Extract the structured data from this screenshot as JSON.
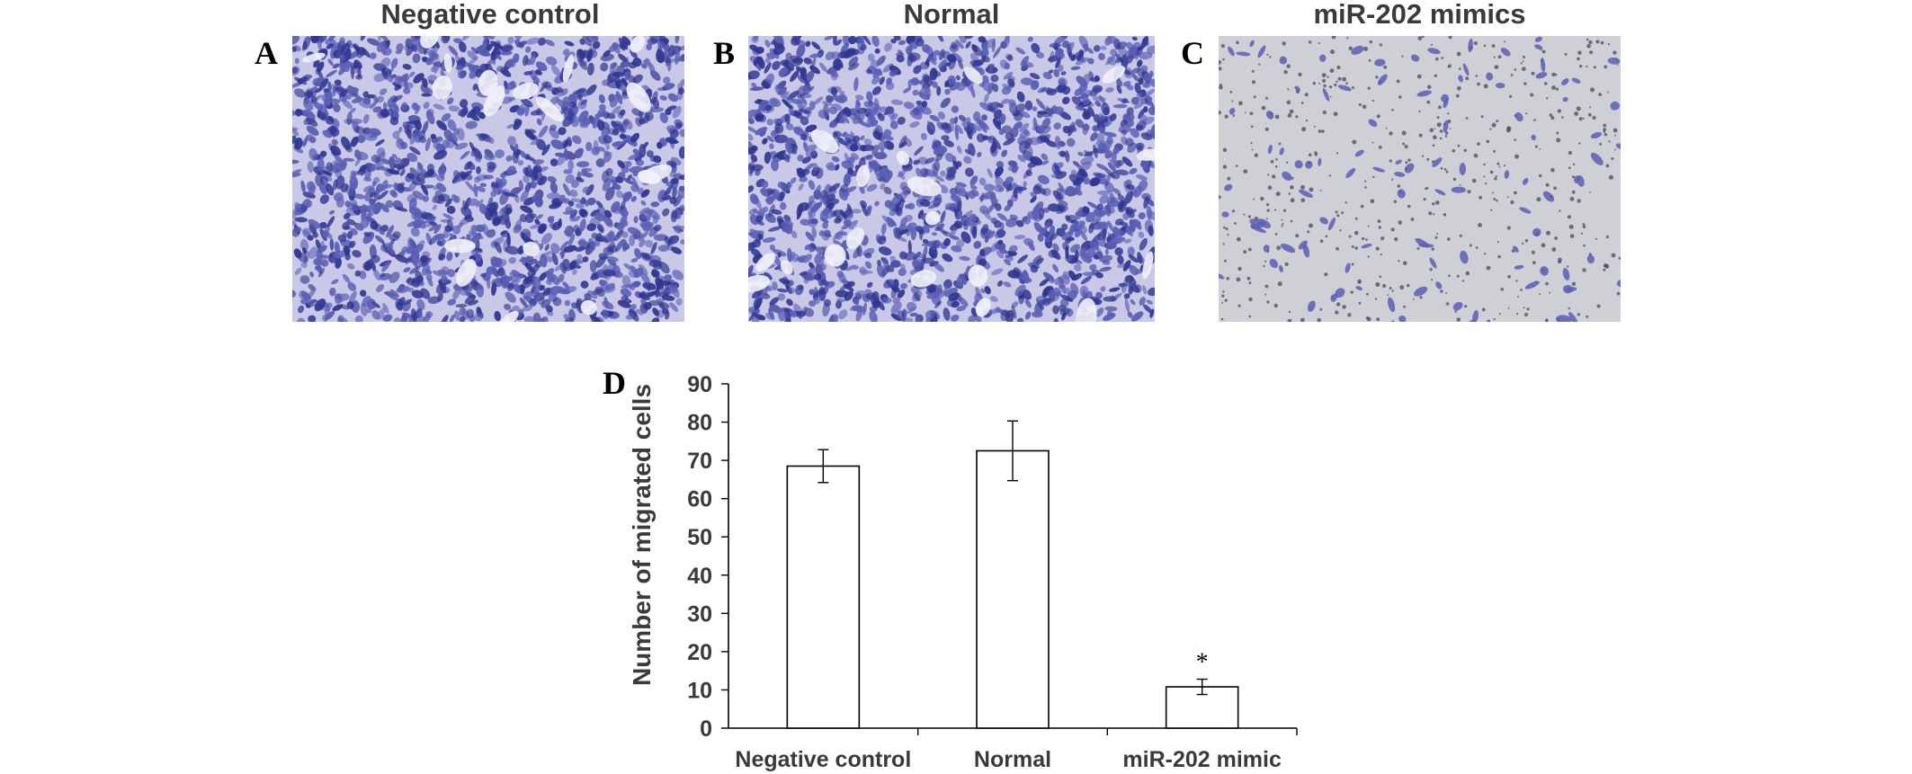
{
  "panels": [
    {
      "letter": "A",
      "title": "Negative control",
      "density": "dense"
    },
    {
      "letter": "B",
      "title": "Normal",
      "density": "dense"
    },
    {
      "letter": "C",
      "title": "miR-202 mimics",
      "density": "sparse"
    }
  ],
  "colors": {
    "stain_dark": "#2f3590",
    "stain_mid": "#5a5fb5",
    "dense_background": "#c9c8e6",
    "sparse_background": "#cfcfd6",
    "bar_fill": "#ffffff",
    "axis": "#000000"
  },
  "chart_data": {
    "panel_letter": "D",
    "type": "bar",
    "categories": [
      "Negative control",
      "Normal",
      "miR-202 mimic"
    ],
    "values": [
      68.5,
      72.5,
      10.8
    ],
    "errors": [
      4.3,
      7.8,
      2.0
    ],
    "significance": [
      "",
      "",
      "*"
    ],
    "ylabel": "Number of migrated cells",
    "xlabel": "",
    "ylim": [
      0,
      90
    ],
    "yticks": [
      0,
      10,
      20,
      30,
      40,
      50,
      60,
      70,
      80,
      90
    ],
    "grid": false
  }
}
